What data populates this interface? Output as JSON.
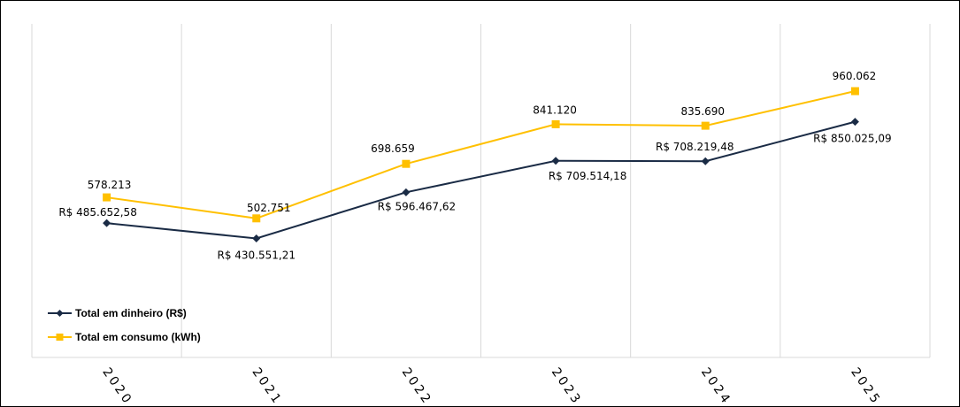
{
  "chart_data": {
    "type": "line",
    "categories": [
      "2020",
      "2021",
      "2022",
      "2023",
      "2024",
      "2025"
    ],
    "series": [
      {
        "name": "Total em dinheiro (R$)",
        "color": "#1a2b45",
        "marker": "diamond",
        "values": [
          485652.58,
          430551.21,
          596467.62,
          709514.18,
          708219.48,
          850025.09
        ],
        "labels": [
          "R$ 485.652,58",
          "R$ 430.551,21",
          "R$ 596.467,62",
          "R$ 709.514,18",
          "R$ 708.219,48",
          "R$ 850.025,09"
        ]
      },
      {
        "name": "Total em consumo (kWh)",
        "color": "#ffc000",
        "marker": "square",
        "values": [
          578213,
          502751,
          698659,
          841120,
          835690,
          960062
        ],
        "labels": [
          "578.213",
          "502.751",
          "698.659",
          "841.120",
          "835.690",
          "960.062"
        ]
      }
    ],
    "gridlines": "vertical",
    "legend_position": "bottom-left"
  }
}
